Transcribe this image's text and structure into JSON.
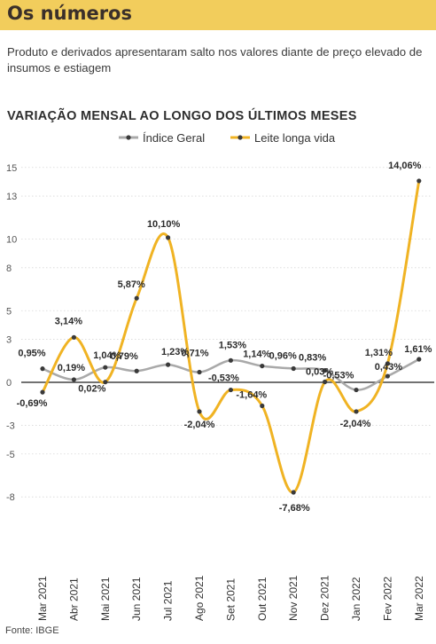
{
  "header": {
    "title": "Os números"
  },
  "subtitle": "Produto e derivados apresentaram salto nos valores diante de preço elevado de insumos e estiagem",
  "source": "Fonte: IBGE",
  "colors": {
    "header_bg": "#f2cd5c",
    "indice": "#a9a9a9",
    "leite": "#f0b323",
    "point": "#3a3a3a",
    "zero_line": "#444444"
  },
  "chart_data": {
    "type": "line",
    "title": "VARIAÇÃO MENSAL AO LONGO DOS ÚLTIMOS MESES",
    "categories": [
      "Mar 2021",
      "Abr 2021",
      "Mai 2021",
      "Jun 2021",
      "Jul 2021",
      "Ago 2021",
      "Set 2021",
      "Out 2021",
      "Nov 2021",
      "Dez 2021",
      "Jan 2022",
      "Fev 2022",
      "Mar 2022"
    ],
    "yticks": [
      15,
      13,
      10,
      8,
      5,
      3,
      0,
      -3,
      -5,
      -8
    ],
    "ylim": [
      -8.5,
      15
    ],
    "grid": true,
    "legend_position": "top-center",
    "series": [
      {
        "name": "Índice Geral",
        "values": [
          0.95,
          0.19,
          1.04,
          0.79,
          1.23,
          0.71,
          1.53,
          1.14,
          0.96,
          0.83,
          -0.53,
          0.43,
          1.61
        ],
        "labels": [
          "0,95%",
          "0,19%",
          "1,04%",
          "0,79%",
          "1,23%",
          "0,71%",
          "1,53%",
          "1,14%",
          "0,96%",
          "0,83%",
          "-0,53%",
          "0,43%",
          "1,61%"
        ]
      },
      {
        "name": "Leite longa vida",
        "values": [
          -0.69,
          3.14,
          0.02,
          5.87,
          10.1,
          -2.04,
          -0.53,
          -1.64,
          -7.68,
          0.03,
          -2.04,
          1.31,
          14.06
        ],
        "labels": [
          "-0,69%",
          "3,14%",
          "0,02%",
          "5,87%",
          "10,10%",
          "-2,04%",
          "-0,53%",
          "-1,64%",
          "-7,68%",
          "0,03%",
          "-2,04%",
          "1,31%",
          "14,06%"
        ]
      }
    ]
  }
}
